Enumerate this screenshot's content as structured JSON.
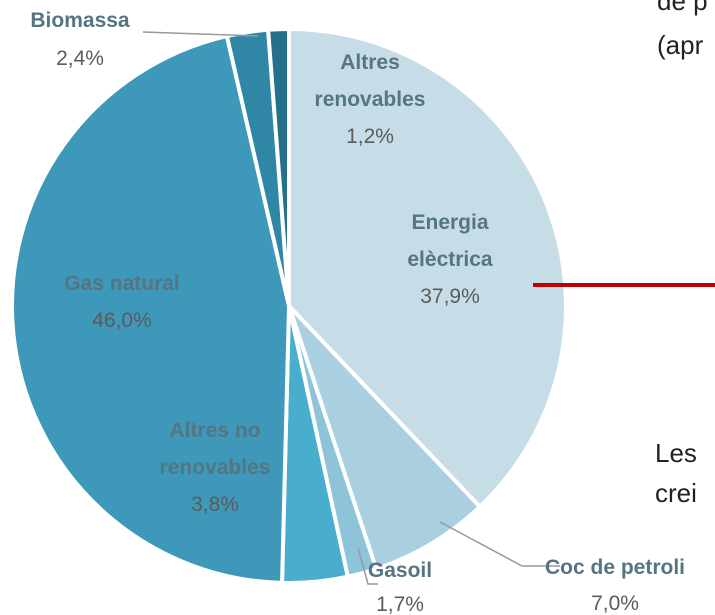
{
  "chart_data": {
    "type": "pie",
    "categories": [
      "Energia elèctrica",
      "Coc de petroli",
      "Gasoil",
      "Altres no renovables",
      "Gas natural",
      "Biomassa",
      "Altres renovables"
    ],
    "values": [
      37.9,
      7.0,
      1.7,
      3.8,
      46.0,
      2.4,
      1.2
    ],
    "value_labels": [
      "37,9%",
      "7,0%",
      "1,7%",
      "3,8%",
      "46,0%",
      "2,4%",
      "1,2%"
    ],
    "colors": [
      "#c6dde8",
      "#a9cfe0",
      "#8ec4da",
      "#49adce",
      "#3d98b9",
      "#2f87a5",
      "#25718c"
    ]
  },
  "side_text": [
    "de p",
    "(apr",
    "Les",
    "crei"
  ]
}
